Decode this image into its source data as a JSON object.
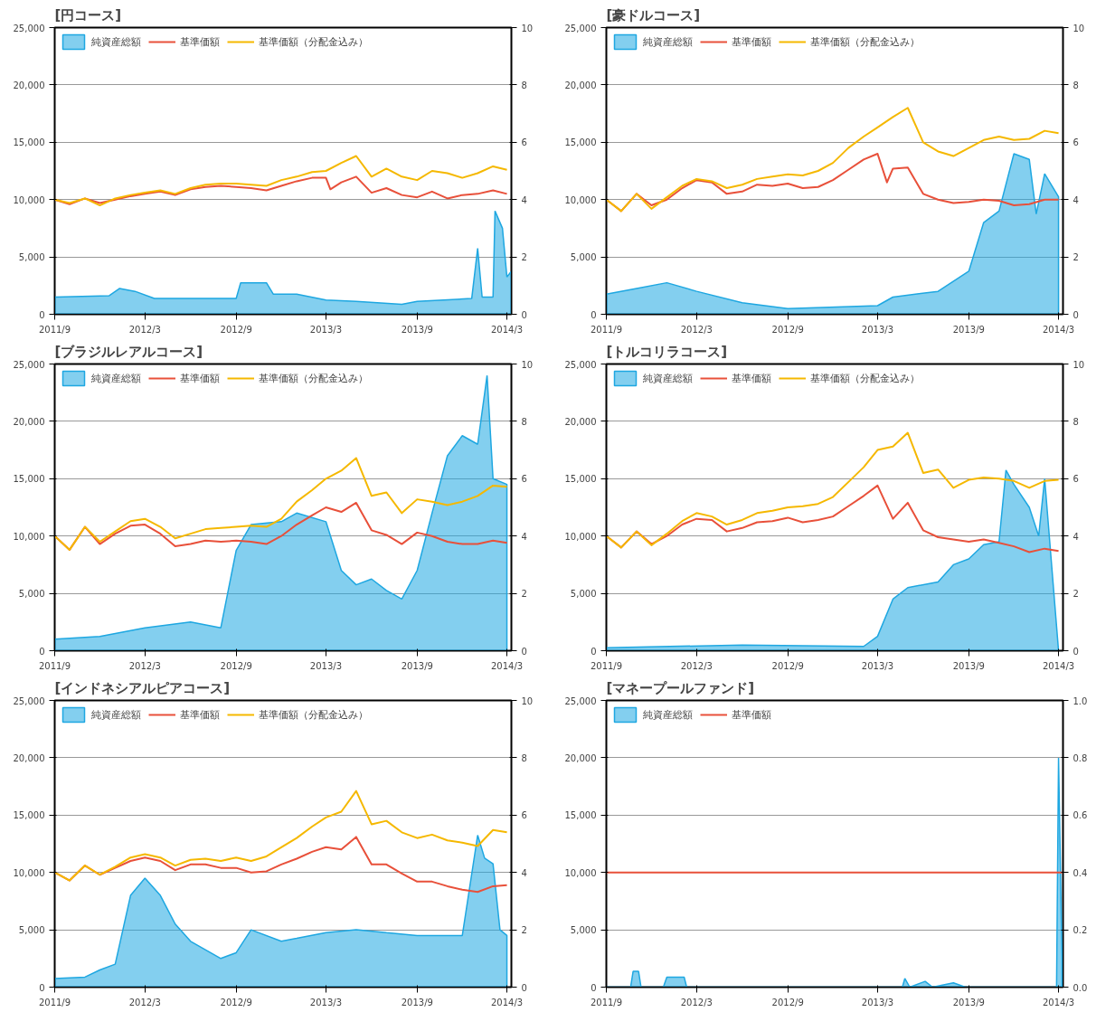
{
  "chart_data": [
    {
      "type": "line",
      "title": "[円コース]",
      "xlim": [
        "2011-09",
        "2014-03-10"
      ],
      "xticks": [
        {
          "value": "2011-09",
          "label": "2011/9"
        },
        {
          "value": "2012-03",
          "label": "2012/3"
        },
        {
          "value": "2012-09",
          "label": "2012/9"
        },
        {
          "value": "2013-03",
          "label": "2013/3"
        },
        {
          "value": "2013-09",
          "label": "2013/9"
        },
        {
          "value": "2014-03",
          "label": "2014/3"
        }
      ],
      "ylim": [
        0,
        25000
      ],
      "yticks": [
        0,
        {
          "value": 5000,
          "label": "5,000"
        },
        {
          "value": 10000,
          "label": "10,000"
        },
        {
          "value": 15000,
          "label": "15,000"
        },
        {
          "value": 20000,
          "label": "20,000"
        },
        {
          "value": 25000,
          "label": "25,000"
        }
      ],
      "y2lim": [
        0,
        10
      ],
      "y2ticks": [
        0,
        2,
        4,
        6,
        8,
        10
      ],
      "grid": "y",
      "legend": "top left",
      "series": [
        {
          "name": "純資産総額",
          "type": "area",
          "axis": "y2",
          "color": "#1ea7e1",
          "x": [
            "2011-09",
            "2011-12-20",
            "2012-01-10",
            "2012-02-10",
            "2012-03-20",
            "2012-09-01",
            "2012-09-10",
            "2012-11-01",
            "2012-11-15",
            "2013-01-01",
            "2013-03-01",
            "2013-05-01",
            "2013-08-01",
            "2013-09-01",
            "2013-12-20",
            "2014-01-01",
            "2014-01-10",
            "2014-02-01",
            "2014-02-05",
            "2014-02-20",
            "2014-03-01",
            "2014-03-10"
          ],
          "values": [
            0.6,
            0.65,
            0.9,
            0.8,
            0.55,
            0.55,
            1.1,
            1.1,
            0.7,
            0.7,
            0.5,
            0.45,
            0.35,
            0.45,
            0.55,
            2.3,
            0.6,
            0.6,
            3.6,
            3.0,
            1.3,
            1.5
          ]
        },
        {
          "name": "基準価額",
          "color": "#e8503a",
          "x": [
            "2011-09",
            "2011-10",
            "2011-11",
            "2011-12",
            "2012-01",
            "2012-02",
            "2012-03",
            "2012-04",
            "2012-05",
            "2012-06",
            "2012-07",
            "2012-08",
            "2012-09",
            "2012-10",
            "2012-11",
            "2012-12",
            "2013-01",
            "2013-02",
            "2013-03",
            "2013-03-10",
            "2013-04",
            "2013-05",
            "2013-06",
            "2013-07",
            "2013-08",
            "2013-09",
            "2013-10",
            "2013-11",
            "2013-12",
            "2014-01",
            "2014-02",
            "2014-03"
          ],
          "values": [
            10000,
            9600,
            10100,
            9700,
            10000,
            10300,
            10500,
            10700,
            10400,
            10900,
            11100,
            11200,
            11100,
            11000,
            10800,
            11200,
            11600,
            11900,
            11900,
            10900,
            11500,
            12000,
            10600,
            11000,
            10400,
            10200,
            10700,
            10100,
            10400,
            10500,
            10800,
            10500
          ]
        },
        {
          "name": "基準価額（分配金込み）",
          "color": "#f5b800",
          "x": [
            "2011-09",
            "2011-10",
            "2011-11",
            "2011-12",
            "2012-01",
            "2012-02",
            "2012-03",
            "2012-04",
            "2012-05",
            "2012-06",
            "2012-07",
            "2012-08",
            "2012-09",
            "2012-10",
            "2012-11",
            "2012-12",
            "2013-01",
            "2013-02",
            "2013-03",
            "2013-04",
            "2013-05",
            "2013-06",
            "2013-07",
            "2013-08",
            "2013-09",
            "2013-10",
            "2013-11",
            "2013-12",
            "2014-01",
            "2014-02",
            "2014-03"
          ],
          "values": [
            10000,
            9700,
            10100,
            9500,
            10100,
            10400,
            10600,
            10800,
            10500,
            11000,
            11300,
            11400,
            11400,
            11300,
            11200,
            11700,
            12000,
            12400,
            12500,
            13200,
            13800,
            12000,
            12700,
            12000,
            11700,
            12500,
            12300,
            11900,
            12300,
            12900,
            12600
          ]
        }
      ]
    },
    {
      "type": "line",
      "title": "[豪ドルコース]",
      "xlim": [
        "2011-09",
        "2014-03-10"
      ],
      "xticks": [
        {
          "value": "2011-09",
          "label": "2011/9"
        },
        {
          "value": "2012-03",
          "label": "2012/3"
        },
        {
          "value": "2012-09",
          "label": "2012/9"
        },
        {
          "value": "2013-03",
          "label": "2013/3"
        },
        {
          "value": "2013-09",
          "label": "2013/9"
        },
        {
          "value": "2014-03",
          "label": "2014/3"
        }
      ],
      "ylim": [
        0,
        25000
      ],
      "yticks": [
        0,
        {
          "value": 5000,
          "label": "5,000"
        },
        {
          "value": 10000,
          "label": "10,000"
        },
        {
          "value": 15000,
          "label": "15,000"
        },
        {
          "value": 20000,
          "label": "20,000"
        },
        {
          "value": 25000,
          "label": "25,000"
        }
      ],
      "y2lim": [
        0,
        10
      ],
      "y2ticks": [
        0,
        2,
        4,
        6,
        8,
        10
      ],
      "grid": "y",
      "legend": "top left",
      "series": [
        {
          "name": "純資産総額",
          "type": "area",
          "axis": "y2",
          "color": "#1ea7e1",
          "x": [
            "2011-09",
            "2011-11",
            "2012-01",
            "2012-03",
            "2012-06",
            "2012-09",
            "2013-03",
            "2013-04",
            "2013-07",
            "2013-09",
            "2013-10",
            "2013-11",
            "2013-12",
            "2014-01",
            "2014-01-15",
            "2014-02",
            "2014-03"
          ],
          "values": [
            0.7,
            0.9,
            1.1,
            0.8,
            0.4,
            0.2,
            0.3,
            0.6,
            0.8,
            1.5,
            3.2,
            3.6,
            5.6,
            5.4,
            3.5,
            4.9,
            4.1
          ]
        },
        {
          "name": "基準価額",
          "color": "#e8503a",
          "x": [
            "2011-09",
            "2011-10",
            "2011-11",
            "2011-12",
            "2012-01",
            "2012-02",
            "2012-03",
            "2012-04",
            "2012-05",
            "2012-06",
            "2012-07",
            "2012-08",
            "2012-09",
            "2012-10",
            "2012-11",
            "2012-12",
            "2013-01",
            "2013-02",
            "2013-03",
            "2013-03-20",
            "2013-04",
            "2013-05",
            "2013-06",
            "2013-07",
            "2013-08",
            "2013-09",
            "2013-10",
            "2013-11",
            "2013-12",
            "2014-01",
            "2014-02",
            "2014-03"
          ],
          "values": [
            10000,
            9000,
            10500,
            9500,
            10000,
            11000,
            11700,
            11500,
            10500,
            10700,
            11300,
            11200,
            11400,
            11000,
            11100,
            11700,
            12600,
            13500,
            14000,
            11500,
            12700,
            12800,
            10500,
            10000,
            9700,
            9800,
            10000,
            9900,
            9500,
            9600,
            10000,
            10000
          ]
        },
        {
          "name": "基準価額（分配金込み）",
          "color": "#f5b800",
          "x": [
            "2011-09",
            "2011-10",
            "2011-11",
            "2011-12",
            "2012-01",
            "2012-02",
            "2012-03",
            "2012-04",
            "2012-05",
            "2012-06",
            "2012-07",
            "2012-08",
            "2012-09",
            "2012-10",
            "2012-11",
            "2012-12",
            "2013-01",
            "2013-02",
            "2013-03",
            "2013-04",
            "2013-05",
            "2013-06",
            "2013-07",
            "2013-08",
            "2013-09",
            "2013-10",
            "2013-11",
            "2013-12",
            "2014-01",
            "2014-02",
            "2014-03"
          ],
          "values": [
            10000,
            9000,
            10500,
            9200,
            10200,
            11200,
            11800,
            11600,
            11000,
            11300,
            11800,
            12000,
            12200,
            12100,
            12500,
            13200,
            14500,
            15500,
            16300,
            17200,
            18000,
            15000,
            14200,
            13800,
            14500,
            15200,
            15500,
            15200,
            15300,
            16000,
            15800
          ]
        }
      ]
    },
    {
      "type": "line",
      "title": "[ブラジルレアルコース]",
      "xlim": [
        "2011-09",
        "2014-03-10"
      ],
      "xticks": [
        {
          "value": "2011-09",
          "label": "2011/9"
        },
        {
          "value": "2012-03",
          "label": "2012/3"
        },
        {
          "value": "2012-09",
          "label": "2012/9"
        },
        {
          "value": "2013-03",
          "label": "2013/3"
        },
        {
          "value": "2013-09",
          "label": "2013/9"
        },
        {
          "value": "2014-03",
          "label": "2014/3"
        }
      ],
      "ylim": [
        0,
        25000
      ],
      "yticks": [
        0,
        {
          "value": 5000,
          "label": "5,000"
        },
        {
          "value": 10000,
          "label": "10,000"
        },
        {
          "value": 15000,
          "label": "15,000"
        },
        {
          "value": 20000,
          "label": "20,000"
        },
        {
          "value": 25000,
          "label": "25,000"
        }
      ],
      "y2lim": [
        0,
        10
      ],
      "y2ticks": [
        0,
        2,
        4,
        6,
        8,
        10
      ],
      "grid": "y",
      "legend": "top left",
      "series": [
        {
          "name": "純資産総額",
          "type": "area",
          "axis": "y2",
          "color": "#1ea7e1",
          "x": [
            "2011-09",
            "2011-12",
            "2012-03",
            "2012-06",
            "2012-08",
            "2012-09",
            "2012-10",
            "2012-12",
            "2013-01",
            "2013-03",
            "2013-04",
            "2013-05",
            "2013-06",
            "2013-07",
            "2013-08",
            "2013-09",
            "2013-10",
            "2013-11",
            "2013-12",
            "2014-01",
            "2014-01-20",
            "2014-02",
            "2014-03"
          ],
          "values": [
            0.4,
            0.5,
            0.8,
            1.0,
            0.8,
            3.5,
            4.4,
            4.5,
            4.8,
            4.5,
            2.8,
            2.3,
            2.5,
            2.1,
            1.8,
            2.8,
            4.8,
            6.8,
            7.5,
            7.2,
            9.6,
            6.0,
            5.8
          ]
        },
        {
          "name": "基準価額",
          "color": "#e8503a",
          "x": [
            "2011-09",
            "2011-10",
            "2011-11",
            "2011-12",
            "2012-01",
            "2012-02",
            "2012-03",
            "2012-04",
            "2012-05",
            "2012-06",
            "2012-07",
            "2012-08",
            "2012-09",
            "2012-10",
            "2012-11",
            "2012-12",
            "2013-01",
            "2013-02",
            "2013-03",
            "2013-04",
            "2013-05",
            "2013-06",
            "2013-07",
            "2013-08",
            "2013-09",
            "2013-10",
            "2013-11",
            "2013-12",
            "2014-01",
            "2014-02",
            "2014-03"
          ],
          "values": [
            10000,
            8800,
            10800,
            9300,
            10200,
            10900,
            11000,
            10200,
            9100,
            9300,
            9600,
            9500,
            9600,
            9500,
            9300,
            10000,
            11000,
            11800,
            12500,
            12100,
            12900,
            10500,
            10100,
            9300,
            10300,
            10000,
            9500,
            9300,
            9300,
            9600,
            9400
          ]
        },
        {
          "name": "基準価額（分配金込み）",
          "color": "#f5b800",
          "x": [
            "2011-09",
            "2011-10",
            "2011-11",
            "2011-12",
            "2012-01",
            "2012-02",
            "2012-03",
            "2012-04",
            "2012-05",
            "2012-06",
            "2012-07",
            "2012-08",
            "2012-09",
            "2012-10",
            "2012-11",
            "2012-12",
            "2013-01",
            "2013-02",
            "2013-03",
            "2013-04",
            "2013-05",
            "2013-06",
            "2013-07",
            "2013-08",
            "2013-09",
            "2013-10",
            "2013-11",
            "2013-12",
            "2014-01",
            "2014-02",
            "2014-03"
          ],
          "values": [
            10000,
            8800,
            10800,
            9500,
            10400,
            11300,
            11500,
            10800,
            9800,
            10200,
            10600,
            10700,
            10800,
            10900,
            10800,
            11500,
            13000,
            14000,
            15000,
            15700,
            16800,
            13500,
            13800,
            12000,
            13200,
            13000,
            12700,
            13000,
            13500,
            14400,
            14300
          ]
        }
      ]
    },
    {
      "type": "line",
      "title": "[トルコリラコース]",
      "xlim": [
        "2011-09",
        "2014-03-10"
      ],
      "xticks": [
        {
          "value": "2011-09",
          "label": "2011/9"
        },
        {
          "value": "2012-03",
          "label": "2012/3"
        },
        {
          "value": "2012-09",
          "label": "2012/9"
        },
        {
          "value": "2013-03",
          "label": "2013/3"
        },
        {
          "value": "2013-09",
          "label": "2013/9"
        },
        {
          "value": "2014-03",
          "label": "2014/3"
        }
      ],
      "ylim": [
        0,
        25000
      ],
      "yticks": [
        0,
        {
          "value": 5000,
          "label": "5,000"
        },
        {
          "value": 10000,
          "label": "10,000"
        },
        {
          "value": 15000,
          "label": "15,000"
        },
        {
          "value": 20000,
          "label": "20,000"
        },
        {
          "value": 25000,
          "label": "25,000"
        }
      ],
      "y2lim": [
        0,
        10
      ],
      "y2ticks": [
        0,
        2,
        4,
        6,
        8,
        10
      ],
      "grid": "y",
      "legend": "top left",
      "series": [
        {
          "name": "純資産総額",
          "type": "area",
          "axis": "y2",
          "color": "#1ea7e1",
          "x": [
            "2011-09",
            "2012-06",
            "2013-02",
            "2013-03",
            "2013-04",
            "2013-05",
            "2013-07",
            "2013-08",
            "2013-09",
            "2013-10",
            "2013-11",
            "2013-11-15",
            "2013-12",
            "2014-01",
            "2014-01-20",
            "2014-02",
            "2014-03"
          ],
          "values": [
            0.1,
            0.2,
            0.15,
            0.5,
            1.8,
            2.2,
            2.4,
            3.0,
            3.2,
            3.7,
            3.8,
            6.3,
            5.8,
            5.0,
            4.0,
            6.0,
            0
          ]
        },
        {
          "name": "基準価額",
          "color": "#e8503a",
          "x": [
            "2011-09",
            "2011-10",
            "2011-11",
            "2011-12",
            "2012-01",
            "2012-02",
            "2012-03",
            "2012-04",
            "2012-05",
            "2012-06",
            "2012-07",
            "2012-08",
            "2012-09",
            "2012-10",
            "2012-11",
            "2012-12",
            "2013-01",
            "2013-02",
            "2013-03",
            "2013-04",
            "2013-05",
            "2013-06",
            "2013-07",
            "2013-08",
            "2013-09",
            "2013-10",
            "2013-11",
            "2013-12",
            "2014-01",
            "2014-02",
            "2014-03"
          ],
          "values": [
            10000,
            9000,
            10400,
            9300,
            10000,
            11000,
            11500,
            11400,
            10400,
            10700,
            11200,
            11300,
            11600,
            11200,
            11400,
            11700,
            12600,
            13500,
            14400,
            11500,
            12900,
            10500,
            9900,
            9700,
            9500,
            9700,
            9400,
            9100,
            8600,
            8900,
            8700
          ]
        },
        {
          "name": "基準価額（分配金込み）",
          "color": "#f5b800",
          "x": [
            "2011-09",
            "2011-10",
            "2011-11",
            "2011-12",
            "2012-01",
            "2012-02",
            "2012-03",
            "2012-04",
            "2012-05",
            "2012-06",
            "2012-07",
            "2012-08",
            "2012-09",
            "2012-10",
            "2012-11",
            "2012-12",
            "2013-01",
            "2013-02",
            "2013-03",
            "2013-04",
            "2013-05",
            "2013-06",
            "2013-07",
            "2013-08",
            "2013-09",
            "2013-10",
            "2013-11",
            "2013-12",
            "2014-01",
            "2014-02",
            "2014-03"
          ],
          "values": [
            10000,
            9000,
            10400,
            9200,
            10200,
            11300,
            12000,
            11700,
            11000,
            11400,
            12000,
            12200,
            12500,
            12600,
            12800,
            13400,
            14700,
            16000,
            17500,
            17800,
            19000,
            15500,
            15800,
            14200,
            14900,
            15100,
            15000,
            14800,
            14200,
            14800,
            14900
          ]
        }
      ]
    },
    {
      "type": "line",
      "title": "[インドネシアルピアコース]",
      "xlim": [
        "2011-09",
        "2014-03-10"
      ],
      "xticks": [
        {
          "value": "2011-09",
          "label": "2011/9"
        },
        {
          "value": "2012-03",
          "label": "2012/3"
        },
        {
          "value": "2012-09",
          "label": "2012/9"
        },
        {
          "value": "2013-03",
          "label": "2013/3"
        },
        {
          "value": "2013-09",
          "label": "2013/9"
        },
        {
          "value": "2014-03",
          "label": "2014/3"
        }
      ],
      "ylim": [
        0,
        25000
      ],
      "yticks": [
        0,
        {
          "value": 5000,
          "label": "5,000"
        },
        {
          "value": 10000,
          "label": "10,000"
        },
        {
          "value": 15000,
          "label": "15,000"
        },
        {
          "value": 20000,
          "label": "20,000"
        },
        {
          "value": 25000,
          "label": "25,000"
        }
      ],
      "y2lim": [
        0,
        10
      ],
      "y2ticks": [
        0,
        2,
        4,
        6,
        8,
        10
      ],
      "grid": "y",
      "legend": "top left",
      "series": [
        {
          "name": "純資産総額",
          "type": "area",
          "axis": "y2",
          "color": "#1ea7e1",
          "x": [
            "2011-09",
            "2011-11",
            "2011-12",
            "2012-01",
            "2012-02",
            "2012-03",
            "2012-04",
            "2012-05",
            "2012-06",
            "2012-08",
            "2012-09",
            "2012-10",
            "2012-12",
            "2013-01",
            "2013-03",
            "2013-05",
            "2013-07",
            "2013-09",
            "2013-12",
            "2014-01",
            "2014-01-15",
            "2014-02",
            "2014-02-15",
            "2014-03"
          ],
          "values": [
            0.3,
            0.35,
            0.6,
            0.8,
            3.2,
            3.8,
            3.2,
            2.2,
            1.6,
            1.0,
            1.2,
            2.0,
            1.6,
            1.7,
            1.9,
            2.0,
            1.9,
            1.8,
            1.8,
            5.3,
            4.5,
            4.3,
            2.0,
            1.8
          ]
        },
        {
          "name": "基準価額",
          "color": "#e8503a",
          "x": [
            "2011-09",
            "2011-10",
            "2011-11",
            "2011-12",
            "2012-01",
            "2012-02",
            "2012-03",
            "2012-04",
            "2012-05",
            "2012-06",
            "2012-07",
            "2012-08",
            "2012-09",
            "2012-10",
            "2012-11",
            "2012-12",
            "2013-01",
            "2013-02",
            "2013-03",
            "2013-04",
            "2013-05",
            "2013-06",
            "2013-07",
            "2013-08",
            "2013-09",
            "2013-10",
            "2013-11",
            "2013-12",
            "2014-01",
            "2014-02",
            "2014-03"
          ],
          "values": [
            10000,
            9300,
            10600,
            9800,
            10400,
            11000,
            11300,
            11000,
            10200,
            10700,
            10700,
            10400,
            10400,
            10000,
            10100,
            10700,
            11200,
            11800,
            12200,
            12000,
            13100,
            10700,
            10700,
            9900,
            9200,
            9200,
            8800,
            8500,
            8300,
            8800,
            8900
          ]
        },
        {
          "name": "基準価額（分配金込み）",
          "color": "#f5b800",
          "x": [
            "2011-09",
            "2011-10",
            "2011-11",
            "2011-12",
            "2012-01",
            "2012-02",
            "2012-03",
            "2012-04",
            "2012-05",
            "2012-06",
            "2012-07",
            "2012-08",
            "2012-09",
            "2012-10",
            "2012-11",
            "2012-12",
            "2013-01",
            "2013-02",
            "2013-03",
            "2013-04",
            "2013-05",
            "2013-06",
            "2013-07",
            "2013-08",
            "2013-09",
            "2013-10",
            "2013-11",
            "2013-12",
            "2014-01",
            "2014-02",
            "2014-03"
          ],
          "values": [
            10000,
            9300,
            10600,
            9800,
            10500,
            11300,
            11600,
            11300,
            10600,
            11100,
            11200,
            11000,
            11300,
            11000,
            11400,
            12200,
            13000,
            14000,
            14800,
            15300,
            17100,
            14200,
            14500,
            13500,
            13000,
            13300,
            12800,
            12600,
            12300,
            13700,
            13500
          ]
        }
      ]
    },
    {
      "type": "line",
      "title": "[マネープールファンド]",
      "xlim": [
        "2011-09",
        "2014-03-10"
      ],
      "xticks": [
        {
          "value": "2011-09",
          "label": "2011/9"
        },
        {
          "value": "2012-03",
          "label": "2012/3"
        },
        {
          "value": "2012-09",
          "label": "2012/9"
        },
        {
          "value": "2013-03",
          "label": "2013/3"
        },
        {
          "value": "2013-09",
          "label": "2013/9"
        },
        {
          "value": "2014-03",
          "label": "2014/3"
        }
      ],
      "ylim": [
        0,
        25000
      ],
      "yticks": [
        0,
        {
          "value": 5000,
          "label": "5,000"
        },
        {
          "value": 10000,
          "label": "10,000"
        },
        {
          "value": 15000,
          "label": "15,000"
        },
        {
          "value": 20000,
          "label": "20,000"
        },
        {
          "value": 25000,
          "label": "25,000"
        }
      ],
      "y2lim": [
        0,
        1
      ],
      "y2ticks": [
        {
          "value": 0,
          "label": "0.0"
        },
        0.2,
        0.4,
        0.6,
        0.8,
        {
          "value": 1,
          "label": "1.0"
        }
      ],
      "grid": "y",
      "legend": "top left",
      "series": [
        {
          "name": "純資産総額",
          "type": "area",
          "axis": "y2",
          "color": "#1ea7e1",
          "x": [
            "2011-09",
            "2011-10-20",
            "2011-10-25",
            "2011-11-05",
            "2011-11-10",
            "2011-12-25",
            "2012-01-01",
            "2012-02-05",
            "2012-02-10",
            "2013-04-20",
            "2013-04-25",
            "2013-05-05",
            "2013-06-05",
            "2013-06-20",
            "2013-08-01",
            "2013-08-25",
            "2014-02-25",
            "2014-03-01",
            "2014-03-08"
          ],
          "values": [
            0,
            0,
            0.055,
            0.055,
            0,
            0,
            0.035,
            0.035,
            0,
            0,
            0.03,
            0,
            0.02,
            0,
            0.015,
            0,
            0,
            0.8,
            0.1
          ]
        },
        {
          "name": "基準価額",
          "color": "#e8503a",
          "x": [
            "2011-09",
            "2014-03-10"
          ],
          "values": [
            10000,
            10000
          ]
        }
      ]
    }
  ]
}
